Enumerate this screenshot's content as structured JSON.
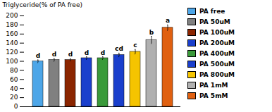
{
  "chart_data": {
    "type": "bar",
    "categories": [
      "PA free",
      "PA 50uM",
      "PA 100uM",
      "PA 200uM",
      "PA 400uM",
      "PA 500uM",
      "PA 800uM",
      "PA 1mM",
      "PA 5mM"
    ],
    "values": [
      100,
      103,
      103,
      107,
      107,
      114,
      121,
      147,
      174
    ],
    "errors": [
      3,
      3,
      2.5,
      3,
      3,
      4,
      5,
      8,
      6
    ],
    "colors": [
      "#4da6e8",
      "#808080",
      "#8B2500",
      "#1a3fcc",
      "#3a9a3a",
      "#1a3fcc",
      "#f5c400",
      "#b0b0b0",
      "#e06010"
    ],
    "significance": [
      "d",
      "d",
      "d",
      "d",
      "d",
      "cd",
      "c",
      "b",
      "a"
    ],
    "ylabel": "Triglyceride(% of PA free)",
    "ylim": [
      0,
      200
    ],
    "yticks": [
      0,
      20,
      40,
      60,
      80,
      100,
      120,
      140,
      160,
      180,
      200
    ],
    "grid": false,
    "legend": "right",
    "tick_labels": "y"
  }
}
